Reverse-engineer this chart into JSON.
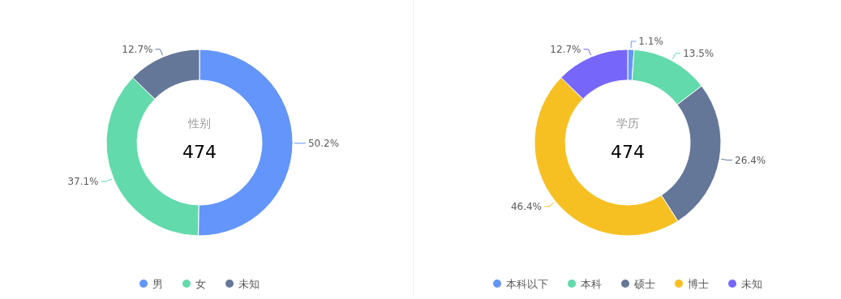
{
  "chart_data": [
    {
      "type": "donut",
      "title": "性别",
      "subtitle": "474",
      "categories": [
        "男",
        "女",
        "未知"
      ],
      "values": [
        50.2,
        37.1,
        12.7
      ],
      "value_labels": [
        "50.2%",
        "37.1%",
        "12.7%"
      ],
      "colors": [
        "#6395fa",
        "#62daab",
        "#657798"
      ],
      "legend": "bottom"
    },
    {
      "type": "donut",
      "title": "学历",
      "subtitle": "474",
      "categories": [
        "本科以下",
        "本科",
        "硕士",
        "博士",
        "未知"
      ],
      "values": [
        1.1,
        13.5,
        26.4,
        46.4,
        12.7
      ],
      "value_labels": [
        "1.1%",
        "13.5%",
        "26.4%",
        "46.4%",
        "12.7%"
      ],
      "colors": [
        "#6395fa",
        "#62daab",
        "#657798",
        "#f6c022",
        "#7666f9"
      ],
      "legend": "bottom"
    }
  ]
}
